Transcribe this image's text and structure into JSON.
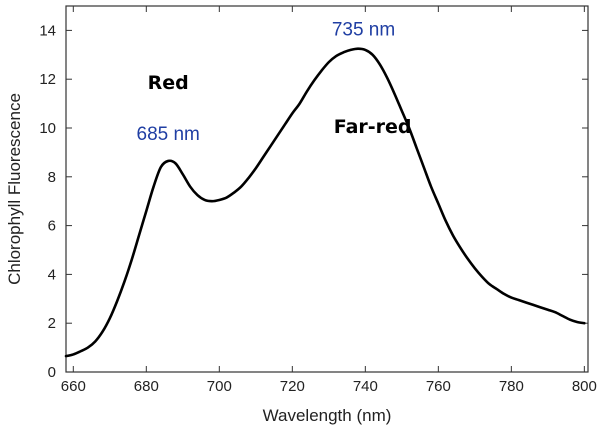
{
  "chart_data": {
    "type": "line",
    "title": "",
    "xlabel": "Wavelength (nm)",
    "ylabel": "Chlorophyll Fluorescence",
    "xlim": [
      658,
      801
    ],
    "ylim": [
      0,
      15
    ],
    "x_ticks": [
      660,
      680,
      700,
      720,
      740,
      760,
      780,
      800
    ],
    "y_ticks": [
      0,
      2,
      4,
      6,
      8,
      10,
      12,
      14
    ],
    "grid": false,
    "legend": "none",
    "line_color": "#000000",
    "series": [
      {
        "x": [
          658,
          660,
          662,
          664,
          666,
          668,
          670,
          672,
          674,
          676,
          678,
          680,
          682,
          684,
          686,
          688,
          690,
          692,
          694,
          696,
          698,
          700,
          702,
          704,
          706,
          708,
          710,
          712,
          714,
          716,
          718,
          720,
          722,
          724,
          726,
          728,
          730,
          732,
          734,
          736,
          738,
          740,
          742,
          744,
          746,
          748,
          750,
          752,
          754,
          756,
          758,
          760,
          762,
          764,
          766,
          768,
          770,
          772,
          774,
          776,
          778,
          780,
          782,
          784,
          786,
          788,
          790,
          792,
          794,
          796,
          798,
          800
        ],
        "y": [
          0.65,
          0.72,
          0.85,
          1.0,
          1.25,
          1.65,
          2.2,
          2.9,
          3.7,
          4.6,
          5.6,
          6.6,
          7.6,
          8.4,
          8.65,
          8.55,
          8.1,
          7.6,
          7.25,
          7.05,
          7.0,
          7.05,
          7.15,
          7.35,
          7.6,
          7.95,
          8.35,
          8.8,
          9.25,
          9.7,
          10.15,
          10.6,
          11.0,
          11.5,
          11.95,
          12.35,
          12.7,
          12.95,
          13.1,
          13.2,
          13.25,
          13.2,
          13.0,
          12.6,
          12.05,
          11.4,
          10.7,
          10.0,
          9.2,
          8.4,
          7.6,
          6.9,
          6.2,
          5.6,
          5.1,
          4.65,
          4.25,
          3.9,
          3.6,
          3.4,
          3.2,
          3.05,
          2.95,
          2.85,
          2.75,
          2.65,
          2.55,
          2.45,
          2.3,
          2.15,
          2.05,
          2.0
        ]
      }
    ],
    "annotations": [
      {
        "text": "Red",
        "x": 686,
        "y": 11.6,
        "color": "#000000",
        "font": "comic"
      },
      {
        "text": "685 nm",
        "x": 686,
        "y": 9.5,
        "color": "#1f3ea3",
        "font": "sans"
      },
      {
        "text": "735 nm",
        "x": 739.5,
        "y": 13.8,
        "color": "#1f3ea3",
        "font": "sans"
      },
      {
        "text": "Far-red",
        "x": 742,
        "y": 9.8,
        "color": "#000000",
        "font": "comic"
      }
    ]
  }
}
